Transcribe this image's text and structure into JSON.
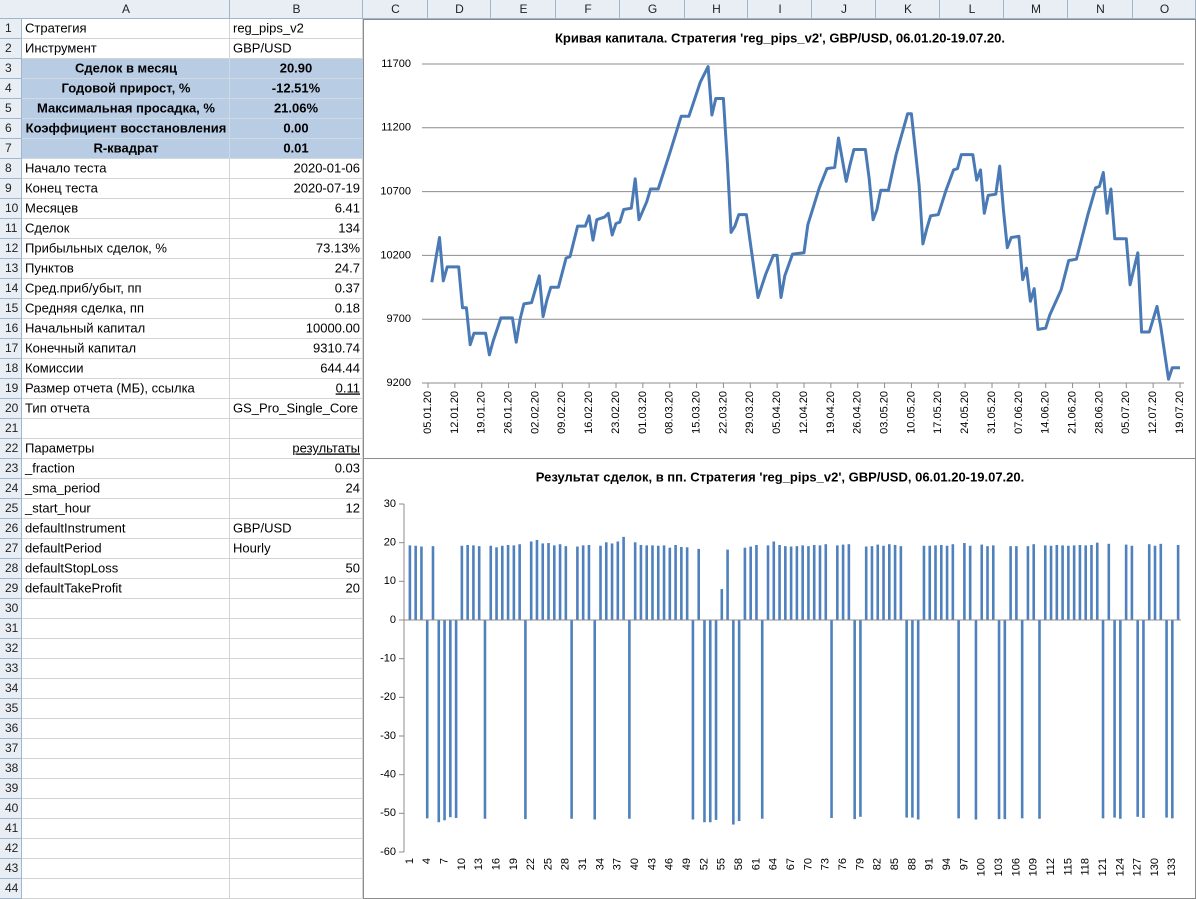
{
  "sheet": {
    "columns": [
      "A",
      "B",
      "C",
      "D",
      "E",
      "F",
      "G",
      "H",
      "I",
      "J",
      "K",
      "L",
      "M",
      "N",
      "O"
    ],
    "row_numbers": [
      1,
      2,
      3,
      4,
      5,
      6,
      7,
      8,
      9,
      10,
      11,
      12,
      13,
      14,
      15,
      16,
      17,
      18,
      19,
      20,
      21,
      22,
      23,
      24,
      25,
      26,
      27,
      28,
      29,
      30,
      31,
      32,
      33,
      34,
      35,
      36,
      37,
      38,
      39,
      40,
      41,
      42,
      43,
      44
    ],
    "rows": [
      [
        "Стратегия",
        "reg_pips_v2"
      ],
      [
        "Инструмент",
        "GBP/USD"
      ],
      [
        "Сделок в месяц",
        "20.90"
      ],
      [
        "Годовой прирост, %",
        "-12.51%"
      ],
      [
        "Максимальная просадка, %",
        "21.06%"
      ],
      [
        "Коэффициент восстановления",
        "0.00"
      ],
      [
        "R-квадрат",
        "0.01"
      ],
      [
        "Начало теста",
        "2020-01-06"
      ],
      [
        "Конец теста",
        "2020-07-19"
      ],
      [
        "Месяцев",
        "6.41"
      ],
      [
        "Сделок",
        "134"
      ],
      [
        "Прибыльных сделок, %",
        "73.13%"
      ],
      [
        "Пунктов",
        "24.7"
      ],
      [
        "Сред.приб/убыт, пп",
        "0.37"
      ],
      [
        "Средняя сделка, пп",
        "0.18"
      ],
      [
        "Начальный капитал",
        "10000.00"
      ],
      [
        "Конечный капитал",
        "9310.74"
      ],
      [
        "Комиссии",
        "644.44"
      ],
      [
        "Размер отчета (МБ), ссылка",
        "0.11"
      ],
      [
        "Тип отчета",
        "GS_Pro_Single_Core"
      ],
      null,
      [
        "Параметры",
        "результаты"
      ],
      [
        "_fraction",
        "0.03"
      ],
      [
        "_sma_period",
        "24"
      ],
      [
        "_start_hour",
        "12"
      ],
      [
        "defaultInstrument",
        "GBP/USD"
      ],
      [
        "defaultPeriod",
        "Hourly"
      ],
      [
        "defaultStopLoss",
        "50"
      ],
      [
        "defaultTakeProfit",
        "20"
      ]
    ]
  },
  "chart_data": [
    {
      "type": "line",
      "title": "Кривая капитала. Стратегия 'reg_pips_v2', GBP/USD, 06.01.20-19.07.20.",
      "color": "#4a7ab5",
      "x": [
        "06.01.20",
        "08.01.20",
        "09.01.20",
        "10.01.20",
        "13.01.20",
        "14.01.20",
        "15.01.20",
        "16.01.20",
        "17.01.20",
        "20.01.20",
        "21.01.20",
        "22.01.20",
        "23.01.20",
        "24.01.20",
        "27.01.20",
        "28.01.20",
        "29.01.20",
        "30.01.20",
        "01.02.20",
        "03.02.20",
        "04.02.20",
        "05.02.20",
        "06.02.20",
        "08.02.20",
        "10.02.20",
        "11.02.20",
        "13.02.20",
        "15.02.20",
        "16.02.20",
        "17.02.20",
        "18.02.20",
        "20.02.20",
        "21.02.20",
        "22.02.20",
        "23.02.20",
        "24.02.20",
        "25.02.20",
        "27.02.20",
        "28.02.20",
        "29.02.20",
        "02.03.20",
        "03.03.20",
        "05.03.20",
        "08.03.20",
        "11.03.20",
        "13.03.20",
        "16.03.20",
        "18.03.20",
        "19.03.20",
        "20.03.20",
        "22.03.20",
        "23.03.20",
        "24.03.20",
        "25.03.20",
        "26.03.20",
        "28.03.20",
        "31.03.20",
        "02.04.20",
        "04.04.20",
        "05.04.20",
        "06.04.20",
        "07.04.20",
        "09.04.20",
        "12.04.20",
        "13.04.20",
        "16.04.20",
        "18.04.20",
        "20.04.20",
        "21.04.20",
        "23.04.20",
        "24.04.20",
        "25.04.20",
        "28.04.20",
        "29.04.20",
        "30.04.20",
        "01.05.20",
        "02.05.20",
        "04.05.20",
        "06.05.20",
        "09.05.20",
        "10.05.20",
        "12.05.20",
        "13.05.20",
        "14.05.20",
        "15.05.20",
        "17.05.20",
        "19.05.20",
        "21.05.20",
        "22.05.20",
        "23.05.20",
        "26.05.20",
        "27.05.20",
        "28.05.20",
        "29.05.20",
        "30.05.20",
        "01.06.20",
        "02.06.20",
        "03.06.20",
        "04.06.20",
        "05.06.20",
        "07.06.20",
        "08.06.20",
        "09.06.20",
        "10.06.20",
        "11.06.20",
        "12.06.20",
        "14.06.20",
        "15.06.20",
        "18.06.20",
        "20.06.20",
        "22.06.20",
        "25.06.20",
        "27.06.20",
        "28.06.20",
        "29.06.20",
        "30.06.20",
        "01.07.20",
        "02.07.20",
        "05.07.20",
        "06.07.20",
        "08.07.20",
        "09.07.20",
        "11.07.20",
        "13.07.20",
        "14.07.20",
        "16.07.20",
        "17.07.20",
        "19.07.20"
      ],
      "values": [
        9990,
        10340,
        10000,
        10110,
        10110,
        9790,
        9790,
        9500,
        9590,
        9590,
        9420,
        9530,
        9620,
        9710,
        9710,
        9520,
        9700,
        9820,
        9830,
        10040,
        9720,
        9850,
        9950,
        9950,
        10180,
        10190,
        10430,
        10430,
        10510,
        10320,
        10480,
        10500,
        10530,
        10360,
        10450,
        10460,
        10560,
        10570,
        10800,
        10480,
        10620,
        10720,
        10720,
        11000,
        11290,
        11290,
        11560,
        11680,
        11300,
        11430,
        11430,
        10940,
        10380,
        10430,
        10520,
        10520,
        9870,
        10050,
        10200,
        10200,
        9870,
        10040,
        10210,
        10220,
        10440,
        10730,
        10880,
        10890,
        11120,
        10780,
        10910,
        11030,
        11030,
        10800,
        10480,
        10560,
        10710,
        10710,
        10990,
        11310,
        11310,
        10750,
        10290,
        10410,
        10510,
        10520,
        10710,
        10870,
        10880,
        10990,
        10990,
        10790,
        10870,
        10530,
        10670,
        10680,
        10900,
        10550,
        10260,
        10340,
        10350,
        10010,
        10100,
        9840,
        9940,
        9620,
        9630,
        9730,
        9930,
        10160,
        10170,
        10520,
        10730,
        10740,
        10850,
        10530,
        10720,
        10330,
        10330,
        9970,
        10220,
        9600,
        9600,
        9800,
        9640,
        9230,
        9320,
        9320
      ],
      "xlim": [
        "05.01.20",
        "19.07.20"
      ],
      "xticks": [
        "05.01.20",
        "12.01.20",
        "19.01.20",
        "26.01.20",
        "02.02.20",
        "09.02.20",
        "16.02.20",
        "23.02.20",
        "01.03.20",
        "08.03.20",
        "15.03.20",
        "22.03.20",
        "29.03.20",
        "05.04.20",
        "12.04.20",
        "19.04.20",
        "26.04.20",
        "03.05.20",
        "10.05.20",
        "17.05.20",
        "24.05.20",
        "31.05.20",
        "07.06.20",
        "14.06.20",
        "21.06.20",
        "28.06.20",
        "05.07.20",
        "12.07.20",
        "19.07.20"
      ],
      "ylim": [
        9200,
        11700
      ],
      "yticks": [
        9200,
        9700,
        10200,
        10700,
        11200,
        11700
      ],
      "grid": true
    },
    {
      "type": "bar",
      "title": "Результат сделок, в пп. Стратегия 'reg_pips_v2', GBP/USD, 06.01.20-19.07.20.",
      "color": "#4f81bd",
      "categories": [
        1,
        null,
        null,
        4,
        null,
        null,
        7,
        null,
        null,
        10,
        null,
        null,
        13,
        null,
        null,
        16,
        null,
        null,
        19,
        null,
        null,
        22,
        null,
        null,
        25,
        null,
        null,
        28,
        null,
        null,
        31,
        null,
        null,
        34,
        null,
        null,
        37,
        null,
        null,
        40,
        null,
        null,
        43,
        null,
        null,
        46,
        null,
        null,
        49,
        null,
        null,
        52,
        null,
        null,
        55,
        null,
        null,
        58,
        null,
        null,
        61,
        null,
        null,
        64,
        null,
        null,
        67,
        null,
        null,
        70,
        null,
        null,
        73,
        null,
        null,
        76,
        null,
        null,
        79,
        null,
        null,
        82,
        null,
        null,
        85,
        null,
        null,
        88,
        null,
        null,
        91,
        null,
        null,
        94,
        null,
        null,
        97,
        null,
        null,
        100,
        null,
        null,
        103,
        null,
        null,
        106,
        null,
        null,
        109,
        null,
        null,
        112,
        null,
        null,
        115,
        null,
        null,
        118,
        null,
        null,
        121,
        null,
        null,
        124,
        null,
        null,
        127,
        null,
        null,
        130,
        null,
        null,
        133,
        null
      ],
      "values": [
        19.3,
        19.2,
        19.0,
        -51.3,
        19.1,
        -52.3,
        -51.8,
        -51.0,
        -51.2,
        19.2,
        19.4,
        19.3,
        19.1,
        -51.4,
        19.2,
        18.8,
        19.2,
        19.4,
        19.3,
        19.6,
        -51.5,
        20.3,
        20.7,
        19.8,
        19.9,
        19.3,
        19.6,
        19.1,
        -51.4,
        19.0,
        19.3,
        19.4,
        -51.6,
        19.2,
        20.1,
        19.8,
        20.3,
        21.5,
        -51.4,
        20.1,
        19.4,
        19.3,
        19.3,
        19.2,
        19.3,
        18.7,
        19.4,
        18.9,
        18.8,
        -51.6,
        18.4,
        -52.3,
        -52.3,
        -51.7,
        8.0,
        18.2,
        -52.9,
        -52.0,
        18.7,
        19.0,
        19.4,
        -51.4,
        19.3,
        20.3,
        19.4,
        19.1,
        19.0,
        19.1,
        19.3,
        19.1,
        19.4,
        19.3,
        19.6,
        -51.2,
        19.3,
        19.5,
        19.6,
        -51.5,
        -50.9,
        19.0,
        19.1,
        19.5,
        19.2,
        19.6,
        19.4,
        19.1,
        -51.1,
        -51.1,
        -51.6,
        19.2,
        19.2,
        19.3,
        19.4,
        19.2,
        19.6,
        -51.3,
        19.9,
        19.2,
        -51.6,
        19.5,
        19.1,
        19.3,
        -51.5,
        -51.5,
        19.1,
        19.1,
        -51.3,
        19.1,
        19.6,
        -51.4,
        19.3,
        19.2,
        19.4,
        19.3,
        19.2,
        19.3,
        19.4,
        19.3,
        19.4,
        20.0,
        -51.3,
        19.7,
        -51.1,
        -51.4,
        19.5,
        19.2,
        -50.9,
        -51.2,
        19.6,
        19.2,
        19.7,
        -51.1,
        -51.3,
        19.4
      ],
      "ylim": [
        -60,
        30
      ],
      "yticks": [
        -60,
        -50,
        -40,
        -30,
        -20,
        -10,
        0,
        10,
        20,
        30
      ]
    }
  ]
}
